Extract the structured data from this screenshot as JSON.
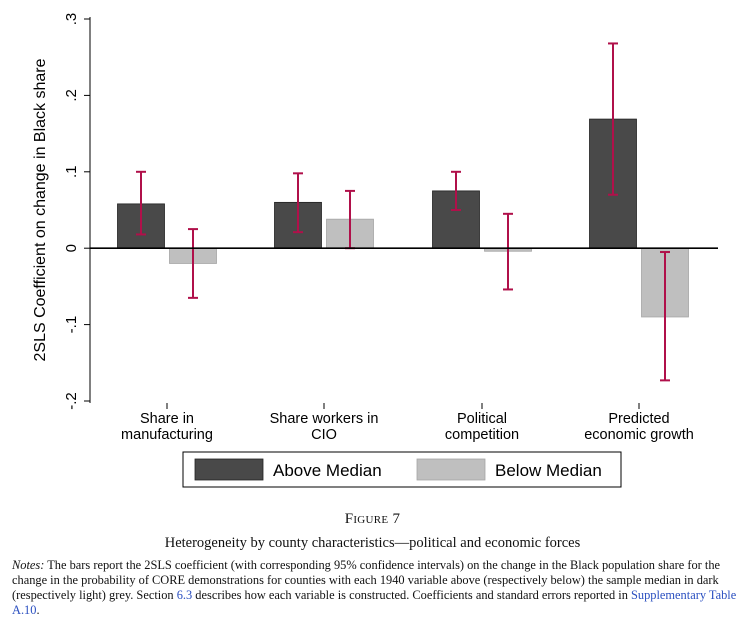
{
  "figure": {
    "label": "Figure 7",
    "title": "Heterogeneity by county characteristics—political and economic forces",
    "notes": {
      "label": "Notes:",
      "part1": " The bars report the 2SLS coefficient (with corresponding 95% confidence intervals) on the change in the Black population share for the change in the probability of CORE demonstrations for counties with each 1940 variable above (respectively below) the sample median in dark (respectively light) grey. Section ",
      "ref1": "6.3",
      "part2": " describes how each variable is constructed. Coefficients and standard errors reported in ",
      "ref2": "Supplementary Table A.10",
      "part3": "."
    }
  },
  "chart_data": {
    "type": "bar",
    "ylabel": "2SLS Coefficient on change in Black share",
    "ylim": [
      -0.2,
      0.3
    ],
    "yticks": [
      {
        "value": -0.2,
        "label": "-.2"
      },
      {
        "value": -0.1,
        "label": "-.1"
      },
      {
        "value": 0,
        "label": "0"
      },
      {
        "value": 0.1,
        "label": ".1"
      },
      {
        "value": 0.2,
        "label": ".2"
      },
      {
        "value": 0.3,
        "label": ".3"
      }
    ],
    "categories": [
      [
        "Share in",
        "manufacturing"
      ],
      [
        "Share workers in",
        "CIO"
      ],
      [
        "Political",
        "competition"
      ],
      [
        "Predicted",
        "economic growth"
      ]
    ],
    "series": [
      {
        "name": "Above Median",
        "color": "#494949",
        "values": [
          0.058,
          0.06,
          0.075,
          0.169
        ],
        "ci_low": [
          0.018,
          0.021,
          0.05,
          0.07
        ],
        "ci_high": [
          0.1,
          0.098,
          0.1,
          0.268
        ]
      },
      {
        "name": "Below Median",
        "color": "#bfbfbf",
        "values": [
          -0.02,
          0.038,
          -0.004,
          -0.09
        ],
        "ci_low": [
          -0.065,
          0.0,
          -0.054,
          -0.173
        ],
        "ci_high": [
          0.025,
          0.075,
          0.045,
          -0.005
        ]
      }
    ],
    "ci_color": "#b0104a",
    "legend_position": "bottom",
    "grid": false
  }
}
